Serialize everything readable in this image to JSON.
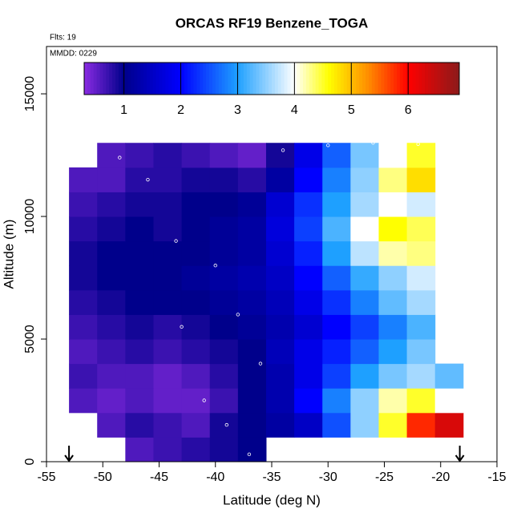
{
  "chart_data": {
    "type": "heatmap",
    "title": "ORCAS RF19 Benzene_TOGA",
    "annotations": [
      "Flts: 19",
      "MMDD: 0229"
    ],
    "xlabel": "Latitude (deg N)",
    "ylabel": "Altitude (m)",
    "xlim": [
      -55,
      -15
    ],
    "ylim": [
      0,
      16930
    ],
    "xticks": [
      -55,
      -50,
      -45,
      -40,
      -35,
      -30,
      -25,
      -20,
      -15
    ],
    "yticks": [
      0,
      5000,
      10000,
      15000
    ],
    "xbins": [
      -53,
      -50.5,
      -48,
      -45.5,
      -43,
      -40.5,
      -38,
      -35.5,
      -33,
      -30.5,
      -28,
      -25.5,
      -23,
      -20.5,
      -18
    ],
    "ybins": [
      0,
      1000,
      2000,
      3000,
      4000,
      5000,
      6000,
      7000,
      8000,
      9000,
      10000,
      11000,
      12000,
      13000
    ],
    "z": [
      [
        null,
        null,
        0.6,
        0.7,
        0.8,
        0.9,
        1.0,
        null,
        null,
        null,
        null,
        null,
        null,
        null
      ],
      [
        null,
        0.6,
        0.8,
        0.7,
        0.6,
        0.9,
        1.0,
        1.2,
        1.5,
        2.5,
        3.5,
        4.5,
        5.8,
        6.3
      ],
      [
        0.6,
        0.5,
        0.6,
        0.5,
        0.5,
        0.7,
        1.0,
        1.3,
        2.0,
        2.8,
        3.5,
        4.2,
        4.5,
        4.0
      ],
      [
        0.7,
        0.6,
        0.6,
        0.5,
        0.6,
        0.8,
        1.0,
        1.3,
        1.8,
        2.4,
        3.0,
        3.4,
        3.6,
        3.3
      ],
      [
        0.6,
        0.7,
        0.8,
        0.7,
        0.8,
        0.9,
        1.0,
        1.4,
        1.8,
        2.2,
        2.6,
        3.0,
        3.4,
        null
      ],
      [
        0.7,
        0.8,
        0.9,
        0.8,
        0.9,
        1.0,
        1.1,
        1.3,
        1.6,
        2.0,
        2.4,
        2.8,
        3.2,
        null
      ],
      [
        0.8,
        0.9,
        1.0,
        1.0,
        1.0,
        1.1,
        1.2,
        1.4,
        1.8,
        2.3,
        2.8,
        3.3,
        3.6,
        null
      ],
      [
        0.9,
        1.0,
        1.0,
        1.0,
        1.1,
        1.2,
        1.3,
        1.5,
        2.0,
        2.6,
        3.1,
        3.5,
        3.8,
        null
      ],
      [
        0.9,
        1.0,
        1.0,
        1.0,
        1.0,
        1.1,
        1.2,
        1.6,
        2.2,
        3.0,
        3.7,
        4.2,
        4.3,
        null
      ],
      [
        0.8,
        0.9,
        1.0,
        0.9,
        1.0,
        1.1,
        1.2,
        1.7,
        2.4,
        3.2,
        4.0,
        4.6,
        4.4,
        null
      ],
      [
        0.7,
        0.8,
        0.9,
        0.9,
        1.0,
        1.0,
        1.1,
        1.6,
        2.3,
        3.0,
        3.6,
        4.0,
        3.8,
        null
      ],
      [
        0.6,
        0.6,
        0.8,
        0.8,
        0.9,
        0.9,
        0.8,
        1.2,
        2.0,
        2.8,
        3.5,
        4.3,
        4.8,
        null
      ],
      [
        null,
        0.6,
        0.7,
        0.8,
        0.7,
        0.6,
        0.5,
        0.9,
        1.8,
        2.6,
        3.4,
        4.0,
        4.5,
        null
      ]
    ],
    "colorscale": [
      [
        0.3,
        "#8a2be2"
      ],
      [
        1.0,
        "#00008b"
      ],
      [
        2.0,
        "#0000ff"
      ],
      [
        3.0,
        "#1ea0ff"
      ],
      [
        4.0,
        "#ffffff"
      ],
      [
        4.6,
        "#ffff00"
      ],
      [
        5.3,
        "#ff8c00"
      ],
      [
        6.0,
        "#ff0000"
      ],
      [
        6.9,
        "#8b1a1a"
      ]
    ],
    "colorbar_lim": [
      0.3,
      6.9
    ],
    "colorbar_ticks": [
      1,
      2,
      3,
      4,
      5,
      6
    ],
    "track": {
      "x": [
        -48.5,
        -46,
        -43.5,
        -40,
        -38,
        -36,
        -34,
        -30,
        -26,
        -22,
        -41,
        -39,
        -43,
        -37
      ],
      "y": [
        12400,
        11500,
        9000,
        8000,
        6000,
        4000,
        12700,
        12900,
        13000,
        12950,
        2500,
        1500,
        5500,
        300
      ]
    },
    "arrows_x": [
      -53,
      -18.3
    ]
  }
}
